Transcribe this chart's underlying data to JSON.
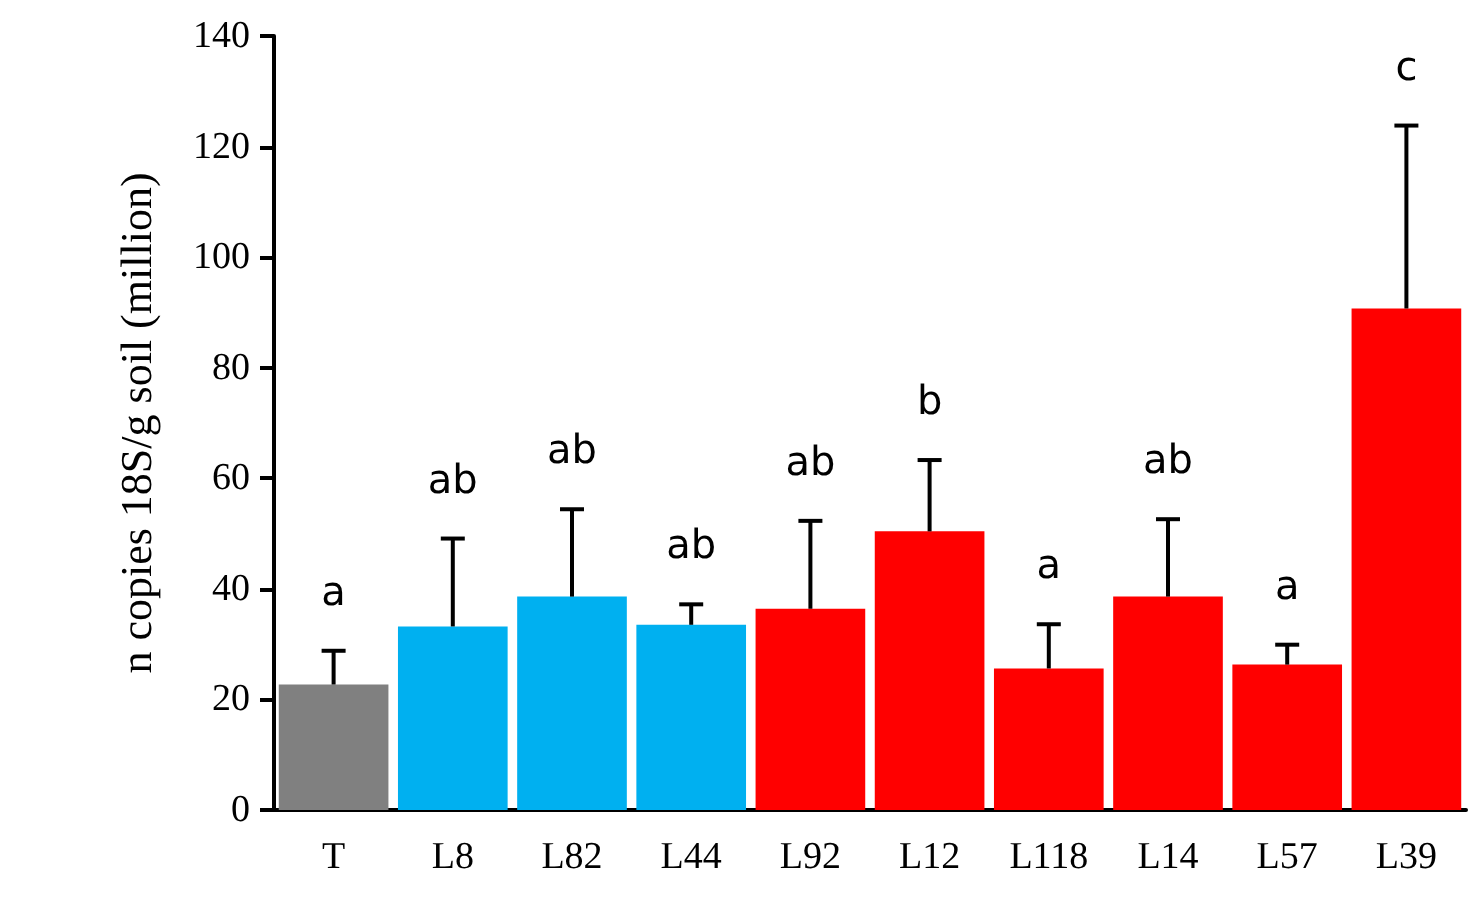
{
  "chart_data": {
    "type": "bar",
    "ylabel": "n copies 18S/g soil (million)",
    "categories": [
      "T",
      "L8",
      "L82",
      "L44",
      "L92",
      "L12",
      "L118",
      "L14",
      "L57",
      "L39"
    ],
    "values": [
      22.7,
      33.2,
      38.6,
      33.5,
      36.4,
      50.4,
      25.6,
      38.6,
      26.3,
      90.7
    ],
    "colors": [
      "#808080",
      "#00b0f0",
      "#00b0f0",
      "#00b0f0",
      "#ff0000",
      "#ff0000",
      "#ff0000",
      "#ff0000",
      "#ff0000",
      "#ff0000"
    ],
    "errors": [
      [
        22.7,
        28.8
      ],
      [
        33.2,
        49.1
      ],
      [
        38.6,
        54.4
      ],
      [
        33.5,
        37.2
      ],
      [
        36.4,
        52.3
      ],
      [
        50.4,
        63.3
      ],
      [
        25.6,
        33.6
      ],
      [
        38.6,
        52.6
      ],
      [
        26.3,
        29.9
      ],
      [
        90.7,
        123.8
      ]
    ],
    "ylim": [
      0,
      140
    ],
    "yticks": [
      0,
      20,
      40,
      60,
      80,
      100,
      120,
      140
    ],
    "grid": false,
    "annotations": [
      "a",
      "ab",
      "ab",
      "ab",
      "ab",
      "b",
      "a",
      "ab",
      "a",
      "c"
    ]
  }
}
